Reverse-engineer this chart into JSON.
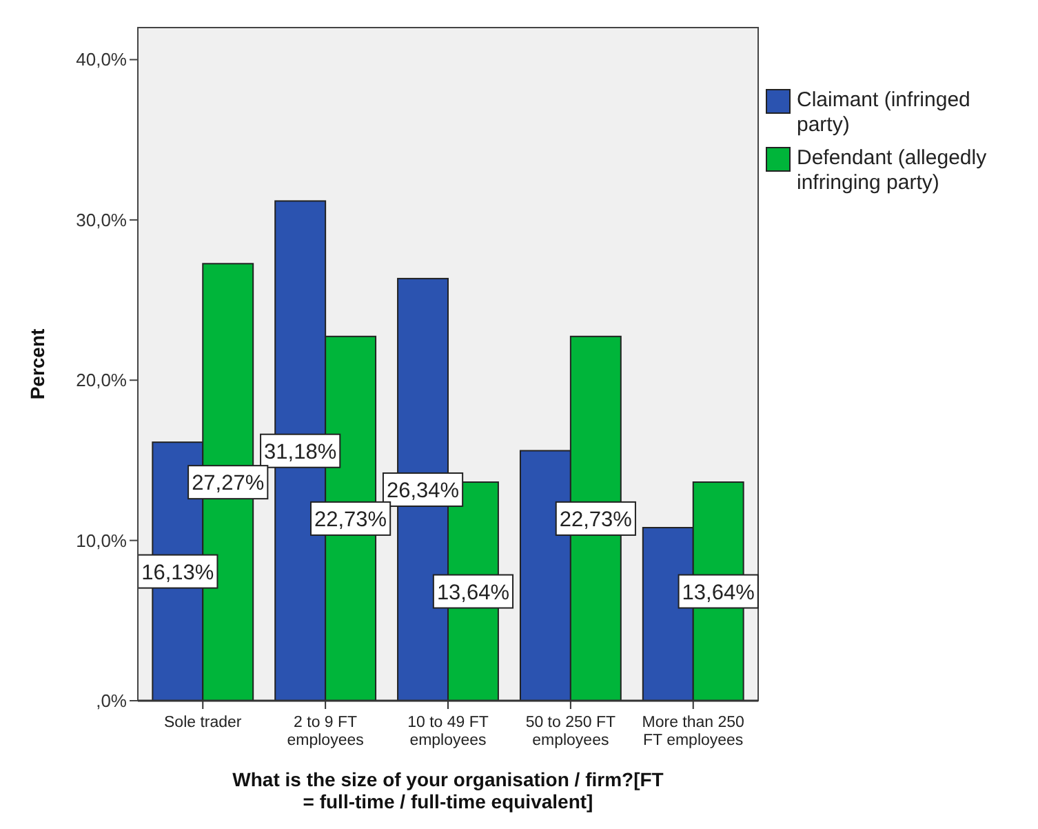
{
  "chart_data": {
    "type": "bar",
    "xlabel": "What is the size of your organisation / firm?[FT = full-time / full-time equivalent]",
    "ylabel": "Percent",
    "categories": [
      "Sole trader",
      "2 to 9 FT employees",
      "10 to 49 FT employees",
      "50 to 250 FT employees",
      "More than 250 FT employees"
    ],
    "series": [
      {
        "name": "Claimant (infringed party)",
        "color": "#2b53b0",
        "values": [
          16.13,
          31.18,
          26.34,
          15.6,
          10.8
        ],
        "value_labels": [
          "16,13%",
          "31,18%",
          "26,34%",
          null,
          null
        ]
      },
      {
        "name": "Defendant (allegedly infringing party)",
        "color": "#00b53a",
        "values": [
          27.27,
          22.73,
          13.64,
          22.73,
          13.64
        ],
        "value_labels": [
          "27,27%",
          "22,73%",
          "13,64%",
          "22,73%",
          "13,64%"
        ]
      }
    ],
    "ylim": [
      0,
      42
    ],
    "yticks": [
      {
        "value": 0,
        "label": ",0%"
      },
      {
        "value": 10,
        "label": "10,0%"
      },
      {
        "value": 20,
        "label": "20,0%"
      },
      {
        "value": 30,
        "label": "30,0%"
      },
      {
        "value": 40,
        "label": "40,0%"
      }
    ],
    "grid": false,
    "legend": "right"
  }
}
